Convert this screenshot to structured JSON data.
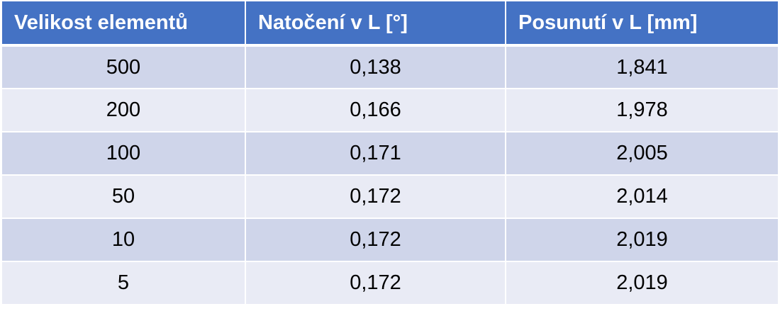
{
  "table": {
    "headers": [
      "Velikost elementů",
      "Natočení v L [°]",
      "Posunutí v L [mm]"
    ],
    "rows": [
      [
        "500",
        "0,138",
        "1,841"
      ],
      [
        "200",
        "0,166",
        "1,978"
      ],
      [
        "100",
        "0,171",
        "2,005"
      ],
      [
        "50",
        "0,172",
        "2,014"
      ],
      [
        "10",
        "0,172",
        "2,019"
      ],
      [
        "5",
        "0,172",
        "2,019"
      ]
    ]
  },
  "colors": {
    "header_bg": "#4472c4",
    "row_odd_bg": "#cfd5ea",
    "row_even_bg": "#e9ebf5"
  }
}
